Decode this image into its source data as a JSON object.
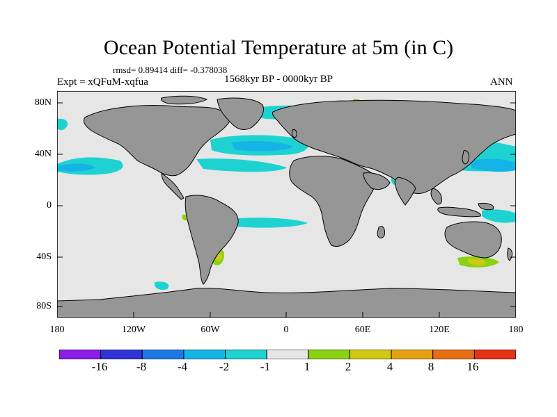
{
  "title": "Ocean Potential Temperature at 5m (in C)",
  "stats_line": "rmsd= 0.89414 diff= -0.378038",
  "experiment": "Expt = xQFuM-xqfua",
  "period": "1568kyr BP - 0000kyr BP",
  "season": "ANN",
  "axes": {
    "y_labels": [
      "80N",
      "40N",
      "0",
      "40S",
      "80S"
    ],
    "x_labels": [
      "180",
      "120W",
      "60W",
      "0",
      "60E",
      "120E",
      "180"
    ]
  },
  "colorbar": {
    "labels": [
      "-16",
      "-8",
      "-4",
      "-2",
      "-1",
      "1",
      "2",
      "4",
      "8",
      "16"
    ],
    "colors": [
      "#8a1ee6",
      "#3232d8",
      "#1e78e6",
      "#14b4e6",
      "#1ed2d2",
      "#e6e6e6",
      "#8cd214",
      "#d2c814",
      "#e6a014",
      "#e66e14",
      "#e63214"
    ]
  },
  "colors": {
    "land": "#969696",
    "ocean_neutral": "#e6e6e6",
    "cyan": "#1ed2d2",
    "light_blue": "#14b4e6",
    "blue": "#1e78e6",
    "green": "#8cd214",
    "yellow": "#d2c814"
  }
}
